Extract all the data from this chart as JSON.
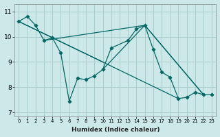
{
  "title": "",
  "xlabel": "Humidex (Indice chaleur)",
  "bg_color": "#cce8e8",
  "grid_color": "#aacccc",
  "line_color": "#006666",
  "xlim": [
    -0.5,
    23.5
  ],
  "ylim": [
    6.85,
    11.3
  ],
  "yticks": [
    7,
    8,
    9,
    10,
    11
  ],
  "xticks": [
    0,
    1,
    2,
    3,
    4,
    5,
    6,
    7,
    8,
    9,
    10,
    11,
    12,
    13,
    14,
    15,
    16,
    17,
    18,
    19,
    20,
    21,
    22,
    23
  ],
  "main_x": [
    0,
    1,
    2,
    3,
    4,
    5,
    6,
    7,
    8,
    9,
    10,
    11,
    13,
    14,
    15,
    16,
    17,
    18,
    19,
    20,
    21,
    22,
    23
  ],
  "main_y": [
    10.6,
    10.8,
    10.45,
    9.85,
    9.95,
    9.35,
    7.45,
    8.35,
    8.3,
    8.45,
    8.7,
    9.55,
    9.85,
    10.3,
    10.45,
    9.5,
    8.6,
    8.4,
    7.55,
    7.6,
    7.8,
    7.7,
    7.7
  ],
  "line1": [
    [
      0,
      10.6
    ],
    [
      10,
      9.0
    ]
  ],
  "line2": [
    [
      0,
      10.6
    ],
    [
      19,
      7.55
    ]
  ],
  "line3": [
    [
      3,
      9.85
    ],
    [
      15,
      10.45
    ],
    [
      22,
      7.7
    ]
  ],
  "line4": [
    [
      10,
      8.7
    ],
    [
      15,
      10.45
    ],
    [
      22,
      7.7
    ]
  ]
}
